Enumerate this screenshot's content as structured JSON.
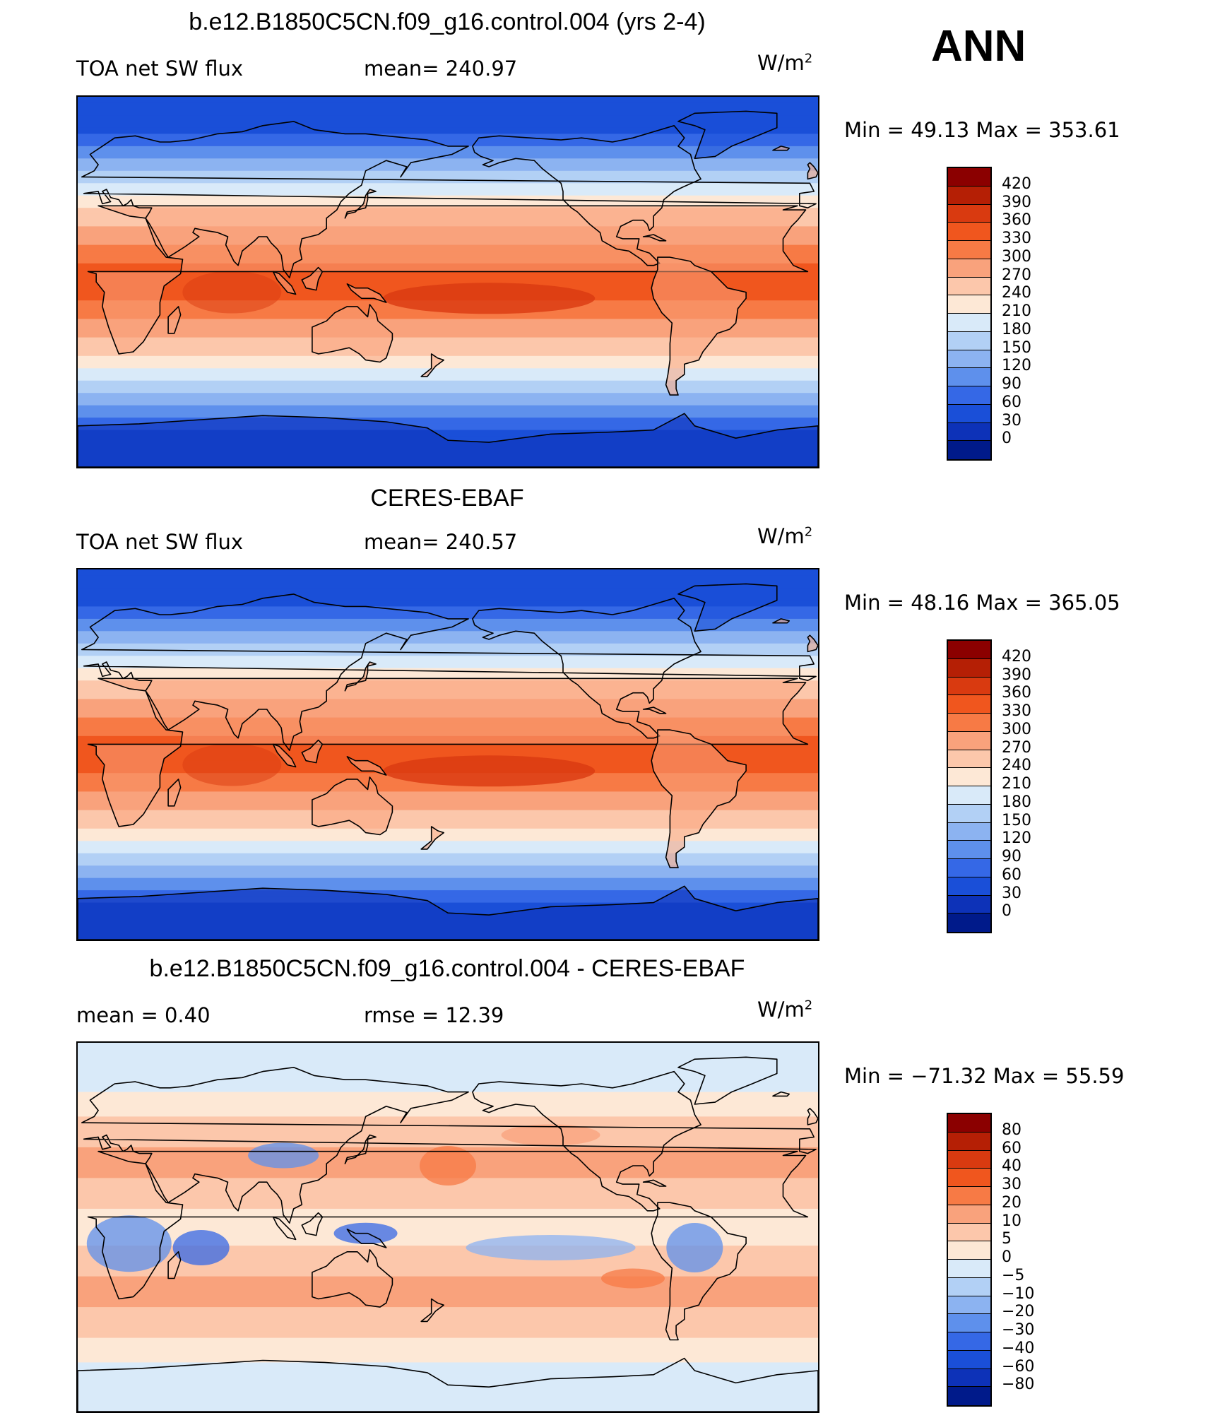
{
  "season": "ANN",
  "units": "W/m",
  "units_exp": "2",
  "panels": [
    {
      "title": "b.e12.B1850C5CN.f09_g16.control.004 (yrs 2-4)",
      "left_label": "TOA net SW flux",
      "mean_text": "mean=  240.97",
      "minmax": "Min =   49.13  Max  =  353.61",
      "ticks": [
        "420",
        "390",
        "360",
        "330",
        "300",
        "270",
        "240",
        "210",
        "180",
        "150",
        "120",
        "90",
        "60",
        "30",
        "0"
      ],
      "colors": [
        "#8b0000",
        "#b51f05",
        "#d93a10",
        "#f0561e",
        "#f77a45",
        "#f9a27c",
        "#fcc7ab",
        "#fde8d6",
        "#d9eaf9",
        "#b2d0f5",
        "#8cb3f1",
        "#5e90ec",
        "#3568e6",
        "#1a4fd8",
        "#0d32b8",
        "#001a8a"
      ],
      "type": "abs"
    },
    {
      "title": "CERES-EBAF",
      "left_label": "TOA net SW flux",
      "mean_text": "mean=  240.57",
      "minmax": "Min =   48.16  Max  =  365.05",
      "ticks": [
        "420",
        "390",
        "360",
        "330",
        "300",
        "270",
        "240",
        "210",
        "180",
        "150",
        "120",
        "90",
        "60",
        "30",
        "0"
      ],
      "colors": [
        "#8b0000",
        "#b51f05",
        "#d93a10",
        "#f0561e",
        "#f77a45",
        "#f9a27c",
        "#fcc7ab",
        "#fde8d6",
        "#d9eaf9",
        "#b2d0f5",
        "#8cb3f1",
        "#5e90ec",
        "#3568e6",
        "#1a4fd8",
        "#0d32b8",
        "#001a8a"
      ],
      "type": "abs"
    },
    {
      "title": "b.e12.B1850C5CN.f09_g16.control.004 - CERES-EBAF",
      "left_label": "mean  =     0.40",
      "mean_text": "rmse  =    12.39",
      "minmax": "Min  =  −71.32  Max  =     55.59",
      "ticks": [
        "80",
        "60",
        "40",
        "30",
        "20",
        "10",
        "5",
        "0",
        "−5",
        "−10",
        "−20",
        "−30",
        "−40",
        "−60",
        "−80"
      ],
      "colors": [
        "#8b0000",
        "#b51f05",
        "#d93a10",
        "#f0561e",
        "#f77a45",
        "#f9a27c",
        "#fcc7ab",
        "#fde8d6",
        "#d9eaf9",
        "#b2d0f5",
        "#8cb3f1",
        "#5e90ec",
        "#3568e6",
        "#1a4fd8",
        "#0d32b8",
        "#001a8a"
      ],
      "type": "diff"
    }
  ]
}
